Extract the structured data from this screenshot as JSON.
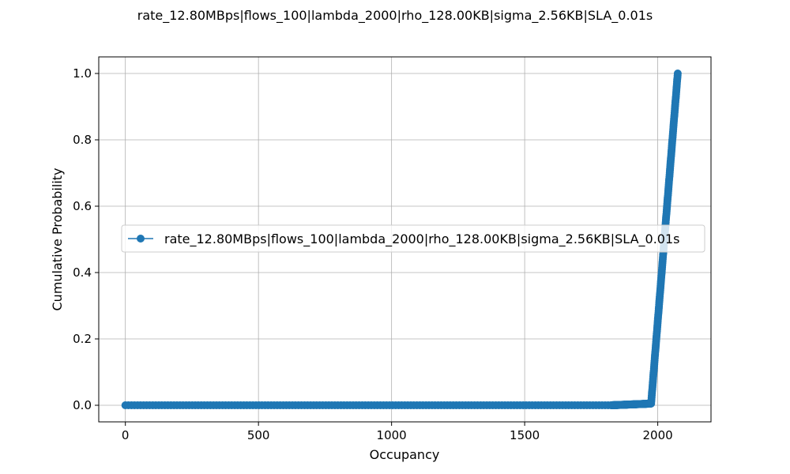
{
  "chart_data": {
    "type": "line",
    "title": "rate_12.80MBps|flows_100|lambda_2000|rho_128.00KB|sigma_2.56KB|SLA_0.01s",
    "xlabel": "Occupancy",
    "ylabel": "Cumulative Probability",
    "xlim": [
      -100,
      2200
    ],
    "ylim": [
      -0.05,
      1.05
    ],
    "x_ticks": [
      0,
      500,
      1000,
      1500,
      2000
    ],
    "x_tick_labels": [
      "0",
      "500",
      "1000",
      "1500",
      "2000"
    ],
    "y_ticks": [
      0.0,
      0.2,
      0.4,
      0.6,
      0.8,
      1.0
    ],
    "y_tick_labels": [
      "0.0",
      "0.2",
      "0.4",
      "0.6",
      "0.8",
      "1.0"
    ],
    "grid": true,
    "legend_position": "center-right",
    "series": [
      {
        "name": "rate_12.80MBps|flows_100|lambda_2000|rho_128.00KB|sigma_2.56KB|SLA_0.01s",
        "color": "#1f77b4",
        "marker": "circle",
        "segments": [
          {
            "x_from": 0,
            "x_to": 1825,
            "y_from": 0.0,
            "y_to": 0.0
          },
          {
            "x_from": 1825,
            "x_to": 1975,
            "y_from": 0.0,
            "y_to": 0.005
          },
          {
            "x_from": 1975,
            "x_to": 2075,
            "y_from": 0.005,
            "y_to": 1.0
          }
        ]
      }
    ]
  }
}
